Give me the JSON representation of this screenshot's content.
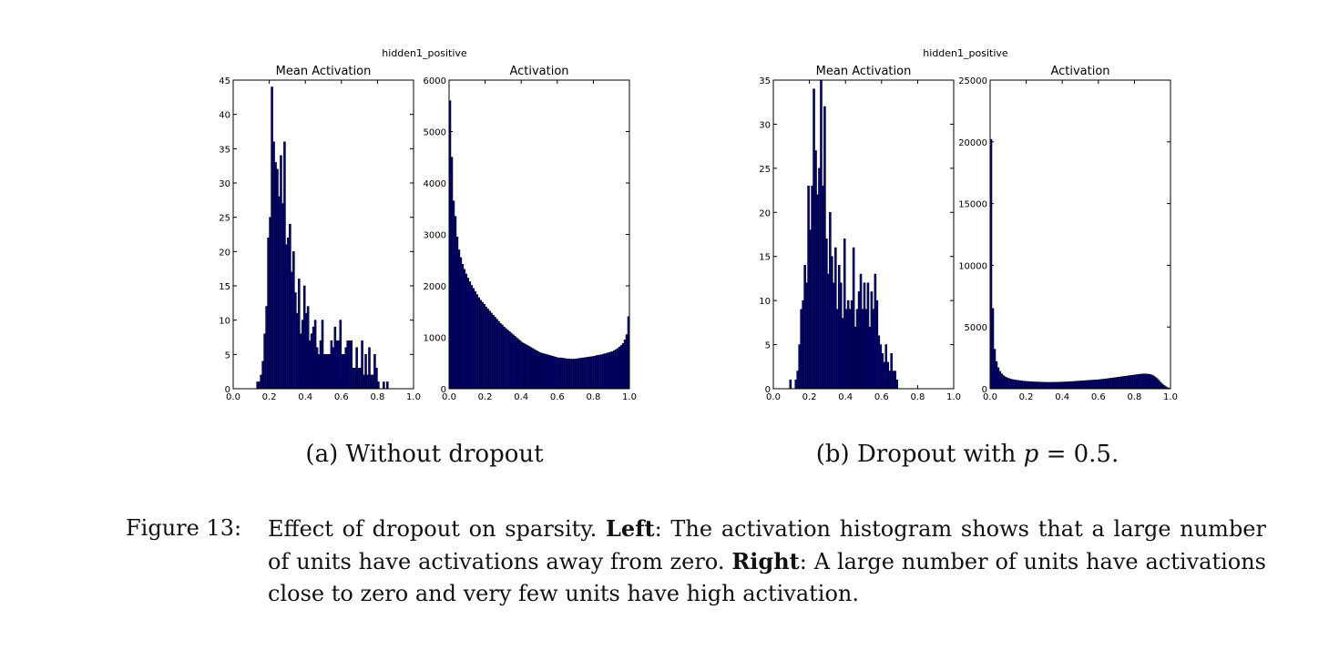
{
  "figure": {
    "number_label": "Figure 13:",
    "caption_lead": "Effect of dropout on sparsity.",
    "left_label": "Left",
    "left_text": ": The activation histogram shows that a large number of units have activations away from zero.",
    "right_label": "Right",
    "right_text": ": A large number of units have activations close to zero and very few units have high activation."
  },
  "subfigures": [
    {
      "caption": "(a) Without dropout"
    },
    {
      "caption_prefix": "(b) Dropout with ",
      "caption_var": "p",
      "caption_suffix": " = 0.5."
    }
  ],
  "colors": {
    "bar_fill": "#00008b",
    "bar_edge": "#000000",
    "axis": "#000000"
  },
  "chart_data": [
    {
      "type": "bar",
      "panel": "(a)",
      "suptitle": "hidden1_positive",
      "title": "Mean Activation",
      "xlim": [
        0.0,
        1.0
      ],
      "ylim": [
        0,
        45
      ],
      "xticks": [
        "0.0",
        "0.2",
        "0.4",
        "0.6",
        "0.8",
        "1.0"
      ],
      "yticks": [
        "0",
        "5",
        "10",
        "15",
        "20",
        "25",
        "30",
        "35",
        "40",
        "45"
      ],
      "bin_width": 0.01,
      "x": [
        0.13,
        0.14,
        0.15,
        0.16,
        0.17,
        0.18,
        0.19,
        0.2,
        0.21,
        0.22,
        0.23,
        0.24,
        0.25,
        0.26,
        0.27,
        0.28,
        0.29,
        0.3,
        0.31,
        0.32,
        0.33,
        0.34,
        0.35,
        0.36,
        0.37,
        0.38,
        0.39,
        0.4,
        0.41,
        0.42,
        0.43,
        0.44,
        0.45,
        0.46,
        0.47,
        0.48,
        0.49,
        0.5,
        0.51,
        0.52,
        0.53,
        0.54,
        0.55,
        0.56,
        0.57,
        0.58,
        0.59,
        0.6,
        0.61,
        0.62,
        0.63,
        0.64,
        0.65,
        0.66,
        0.67,
        0.68,
        0.69,
        0.7,
        0.71,
        0.72,
        0.73,
        0.74,
        0.75,
        0.76,
        0.77,
        0.78,
        0.79,
        0.8,
        0.81,
        0.82,
        0.83,
        0.84,
        0.85
      ],
      "values": [
        1,
        1,
        2,
        4,
        8,
        12,
        22,
        25,
        44,
        36,
        33,
        32,
        28,
        34,
        27,
        36,
        21,
        22,
        24,
        17,
        20,
        14,
        11,
        16,
        8,
        10,
        15,
        11,
        12,
        7,
        8,
        9,
        10,
        6,
        5,
        7,
        10,
        5,
        5,
        5,
        5,
        7,
        6,
        9,
        7,
        7,
        10,
        5,
        5,
        6,
        7,
        7,
        7,
        3,
        3,
        6,
        3,
        3,
        7,
        2,
        5,
        2,
        6,
        2,
        2,
        5,
        3,
        1,
        0,
        0,
        1,
        0,
        1
      ]
    },
    {
      "type": "bar",
      "panel": "(a)",
      "title": "Activation",
      "xlim": [
        0.0,
        1.0
      ],
      "ylim": [
        0,
        6000
      ],
      "xticks": [
        "0.0",
        "0.2",
        "0.4",
        "0.6",
        "0.8",
        "1.0"
      ],
      "yticks": [
        "0",
        "1000",
        "2000",
        "3000",
        "4000",
        "5000",
        "6000"
      ],
      "bin_width": 0.01,
      "x": [
        0.0,
        0.01,
        0.02,
        0.03,
        0.04,
        0.05,
        0.06,
        0.07,
        0.08,
        0.09,
        0.1,
        0.11,
        0.12,
        0.13,
        0.14,
        0.15,
        0.16,
        0.17,
        0.18,
        0.19,
        0.2,
        0.21,
        0.22,
        0.23,
        0.24,
        0.25,
        0.26,
        0.27,
        0.28,
        0.29,
        0.3,
        0.31,
        0.32,
        0.33,
        0.34,
        0.35,
        0.36,
        0.37,
        0.38,
        0.39,
        0.4,
        0.41,
        0.42,
        0.43,
        0.44,
        0.45,
        0.46,
        0.47,
        0.48,
        0.49,
        0.5,
        0.51,
        0.52,
        0.53,
        0.54,
        0.55,
        0.56,
        0.57,
        0.58,
        0.59,
        0.6,
        0.61,
        0.62,
        0.63,
        0.64,
        0.65,
        0.66,
        0.67,
        0.68,
        0.69,
        0.7,
        0.71,
        0.72,
        0.73,
        0.74,
        0.75,
        0.76,
        0.77,
        0.78,
        0.79,
        0.8,
        0.81,
        0.82,
        0.83,
        0.84,
        0.85,
        0.86,
        0.87,
        0.88,
        0.89,
        0.9,
        0.91,
        0.92,
        0.93,
        0.94,
        0.95,
        0.96,
        0.97,
        0.98,
        0.99
      ],
      "values": [
        5600,
        4500,
        3650,
        3350,
        2950,
        2700,
        2550,
        2420,
        2320,
        2230,
        2150,
        2080,
        2010,
        1950,
        1890,
        1830,
        1770,
        1720,
        1680,
        1640,
        1590,
        1550,
        1510,
        1470,
        1430,
        1390,
        1350,
        1310,
        1270,
        1240,
        1200,
        1170,
        1140,
        1110,
        1080,
        1050,
        1020,
        990,
        960,
        930,
        900,
        880,
        860,
        840,
        820,
        800,
        780,
        760,
        740,
        720,
        700,
        690,
        680,
        670,
        660,
        650,
        640,
        630,
        620,
        610,
        600,
        600,
        595,
        590,
        585,
        580,
        580,
        575,
        575,
        575,
        580,
        585,
        590,
        595,
        600,
        605,
        610,
        615,
        620,
        625,
        630,
        640,
        650,
        655,
        660,
        670,
        680,
        690,
        700,
        710,
        720,
        740,
        760,
        780,
        810,
        840,
        880,
        950,
        1050,
        1400
      ]
    },
    {
      "type": "bar",
      "panel": "(b)",
      "suptitle": "hidden1_positive",
      "title": "Mean Activation",
      "xlim": [
        0.0,
        1.0
      ],
      "ylim": [
        0,
        35
      ],
      "xticks": [
        "0.0",
        "0.2",
        "0.4",
        "0.6",
        "0.8",
        "1.0"
      ],
      "yticks": [
        "0",
        "5",
        "10",
        "15",
        "20",
        "25",
        "30",
        "35"
      ],
      "bin_width": 0.01,
      "x": [
        0.09,
        0.1,
        0.11,
        0.12,
        0.13,
        0.14,
        0.15,
        0.16,
        0.17,
        0.18,
        0.19,
        0.2,
        0.21,
        0.22,
        0.23,
        0.24,
        0.25,
        0.26,
        0.27,
        0.28,
        0.29,
        0.3,
        0.31,
        0.32,
        0.33,
        0.34,
        0.35,
        0.36,
        0.37,
        0.38,
        0.39,
        0.4,
        0.41,
        0.42,
        0.43,
        0.44,
        0.45,
        0.46,
        0.47,
        0.48,
        0.49,
        0.5,
        0.51,
        0.52,
        0.53,
        0.54,
        0.55,
        0.56,
        0.57,
        0.58,
        0.59,
        0.6,
        0.61,
        0.62,
        0.63,
        0.64,
        0.65,
        0.66,
        0.67,
        0.68
      ],
      "values": [
        1,
        0,
        0,
        1,
        2,
        5,
        9,
        10,
        14,
        12,
        23,
        18,
        23,
        34,
        27,
        22,
        25,
        35,
        23,
        32,
        17,
        13,
        20,
        15,
        12,
        16,
        9,
        14,
        12,
        8,
        17,
        9,
        10,
        9,
        10,
        16,
        7,
        9,
        11,
        13,
        9,
        12,
        9,
        12,
        7,
        11,
        9,
        13,
        10,
        6,
        5,
        4,
        3,
        5,
        3,
        2,
        4,
        2,
        2,
        1
      ]
    },
    {
      "type": "bar",
      "panel": "(b)",
      "title": "Activation",
      "xlim": [
        0.0,
        1.0
      ],
      "ylim": [
        0,
        25000
      ],
      "xticks": [
        "0.0",
        "0.2",
        "0.4",
        "0.6",
        "0.8",
        "1.0"
      ],
      "yticks": [
        "0",
        "5000",
        "10000",
        "15000",
        "20000",
        "25000"
      ],
      "bin_width": 0.01,
      "x": [
        0.0,
        0.01,
        0.02,
        0.03,
        0.04,
        0.05,
        0.06,
        0.07,
        0.08,
        0.09,
        0.1,
        0.11,
        0.12,
        0.13,
        0.14,
        0.15,
        0.16,
        0.17,
        0.18,
        0.19,
        0.2,
        0.21,
        0.22,
        0.23,
        0.24,
        0.25,
        0.26,
        0.27,
        0.28,
        0.29,
        0.3,
        0.31,
        0.32,
        0.33,
        0.34,
        0.35,
        0.36,
        0.37,
        0.38,
        0.39,
        0.4,
        0.41,
        0.42,
        0.43,
        0.44,
        0.45,
        0.46,
        0.47,
        0.48,
        0.49,
        0.5,
        0.51,
        0.52,
        0.53,
        0.54,
        0.55,
        0.56,
        0.57,
        0.58,
        0.59,
        0.6,
        0.61,
        0.62,
        0.63,
        0.64,
        0.65,
        0.66,
        0.67,
        0.68,
        0.69,
        0.7,
        0.71,
        0.72,
        0.73,
        0.74,
        0.75,
        0.76,
        0.77,
        0.78,
        0.79,
        0.8,
        0.81,
        0.82,
        0.83,
        0.84,
        0.85,
        0.86,
        0.87,
        0.88,
        0.89,
        0.9,
        0.91,
        0.92,
        0.93,
        0.94,
        0.95,
        0.96,
        0.97,
        0.98,
        0.99
      ],
      "values": [
        20200,
        6500,
        3200,
        2200,
        1700,
        1400,
        1200,
        1050,
        950,
        880,
        820,
        780,
        740,
        710,
        690,
        670,
        650,
        630,
        610,
        600,
        590,
        580,
        570,
        560,
        550,
        545,
        540,
        535,
        530,
        525,
        520,
        515,
        515,
        515,
        520,
        520,
        525,
        525,
        530,
        535,
        540,
        545,
        550,
        560,
        570,
        580,
        590,
        600,
        610,
        620,
        630,
        640,
        650,
        660,
        670,
        680,
        690,
        700,
        710,
        720,
        735,
        750,
        765,
        780,
        800,
        820,
        840,
        860,
        880,
        900,
        920,
        940,
        960,
        980,
        1000,
        1020,
        1040,
        1060,
        1080,
        1100,
        1120,
        1140,
        1160,
        1180,
        1190,
        1200,
        1190,
        1180,
        1160,
        1120,
        1050,
        950,
        830,
        680,
        520,
        380,
        260,
        160,
        80,
        30
      ]
    }
  ]
}
